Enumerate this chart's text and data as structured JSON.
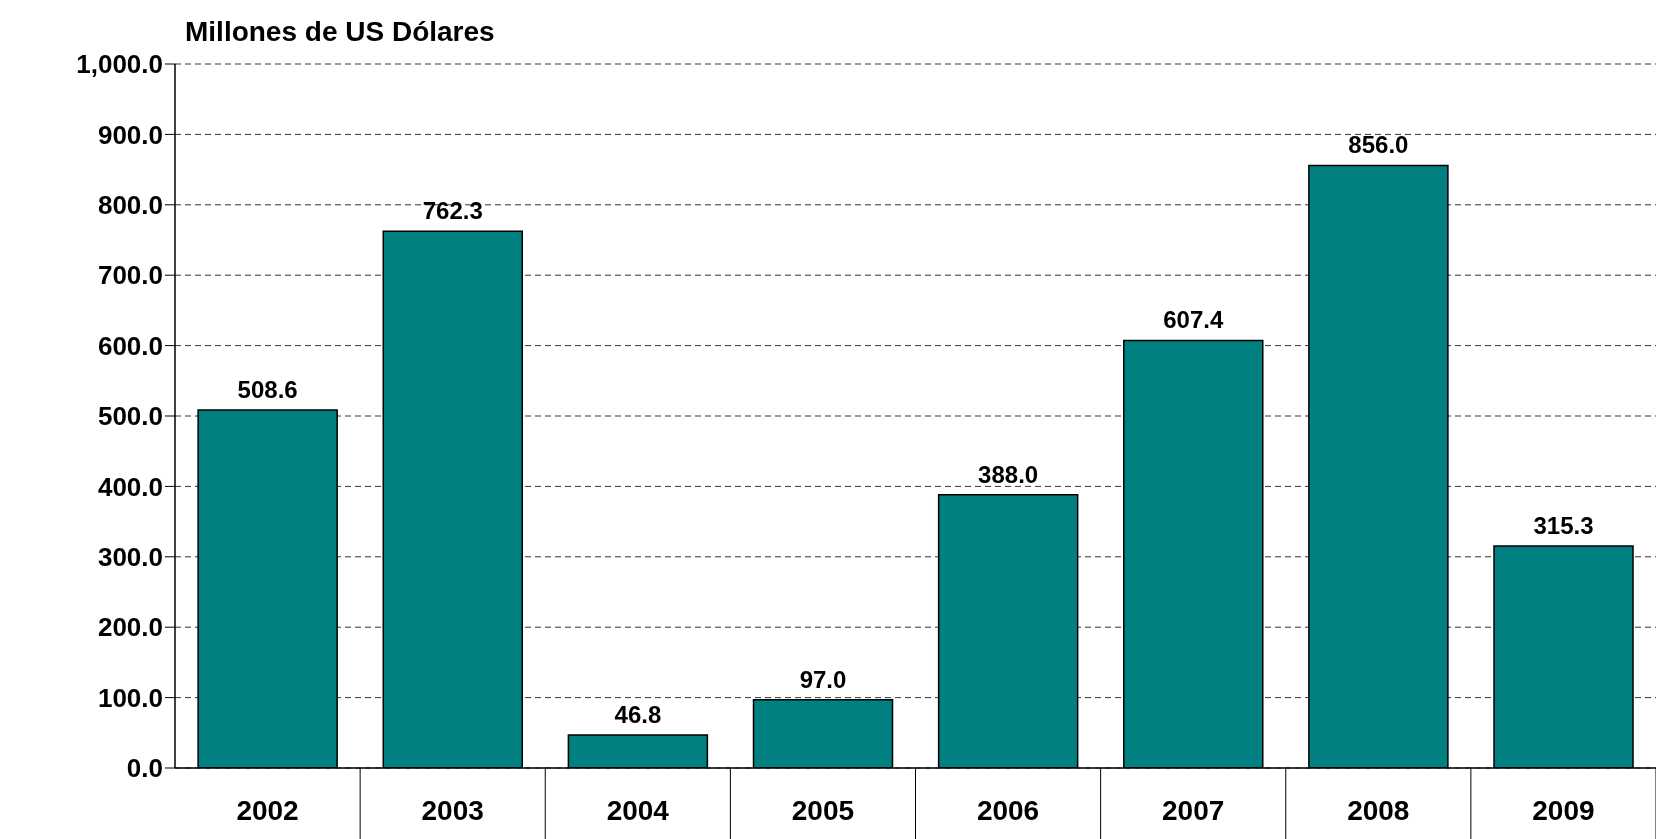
{
  "chart_data": {
    "type": "bar",
    "ylabel": "Millones de US Dólares",
    "categories": [
      "2002",
      "2003",
      "2004",
      "2005",
      "2006",
      "2007",
      "2008",
      "2009"
    ],
    "values": [
      508.6,
      762.3,
      46.8,
      97.0,
      388.0,
      607.4,
      856.0,
      315.3
    ],
    "color": "#008080",
    "ylim": [
      0,
      1000
    ],
    "yticks": [
      {
        "value": 0,
        "label": "0.0"
      },
      {
        "value": 100,
        "label": "100.0"
      },
      {
        "value": 200,
        "label": "200.0"
      },
      {
        "value": 300,
        "label": "300.0"
      },
      {
        "value": 400,
        "label": "400.0"
      },
      {
        "value": 500,
        "label": "500.0"
      },
      {
        "value": 600,
        "label": "600.0"
      },
      {
        "value": 700,
        "label": "700.0"
      },
      {
        "value": 800,
        "label": "800.0"
      },
      {
        "value": 900,
        "label": "900.0"
      },
      {
        "value": 1000,
        "label": "1,000.0"
      }
    ],
    "value_labels": [
      "508.6",
      "762.3",
      "46.8",
      "97.0",
      "388.0",
      "607.4",
      "856.0",
      "315.3"
    ],
    "grid": "y"
  }
}
